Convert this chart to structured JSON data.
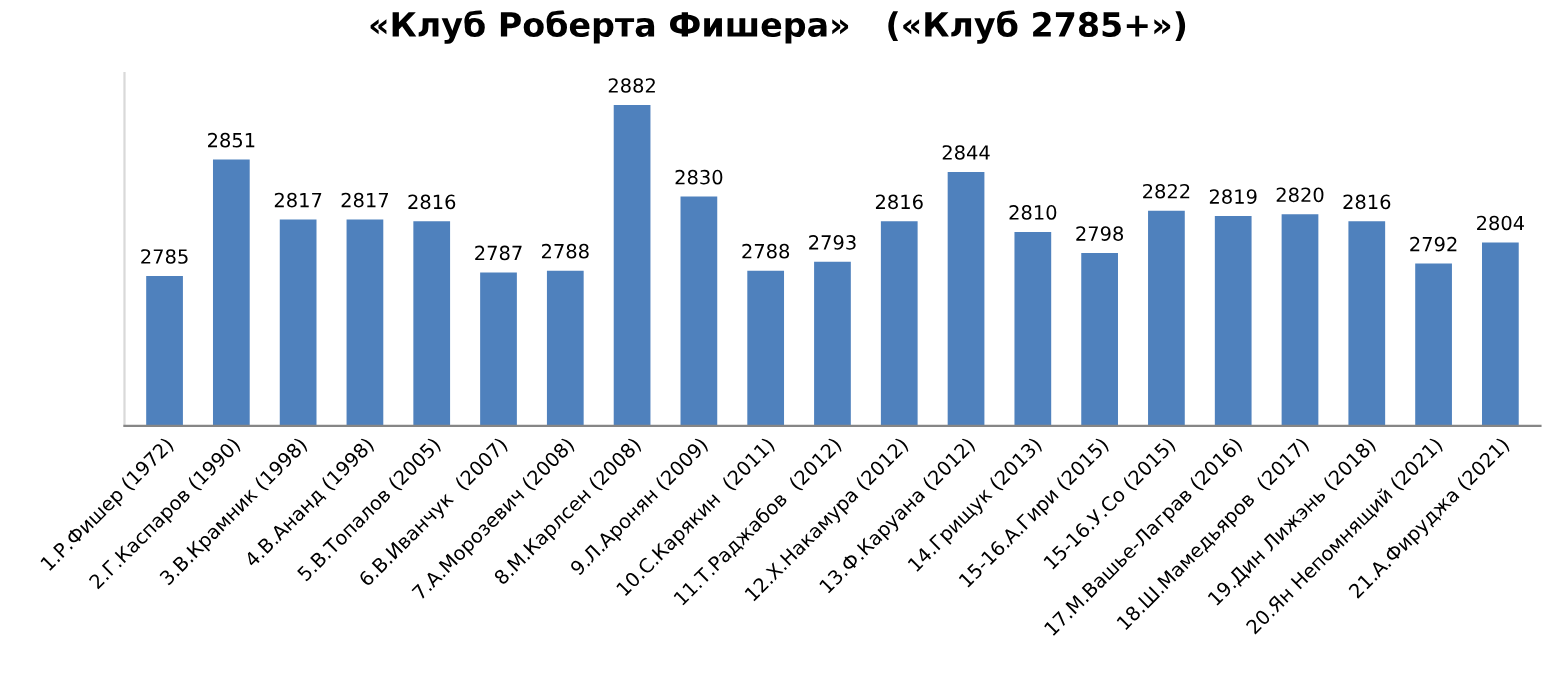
{
  "chart_data": {
    "type": "bar",
    "title": "«Клуб Роберта Фишера»   («Клуб 2785+»)",
    "categories": [
      "1.Р.Фишер (1972)",
      "2.Г.Каспаров (1990)",
      "3.В.Крамник (1998)",
      "4.В.Ананд (1998)",
      "5.В.Топалов (2005)",
      "6.В.Иванчук  (2007)",
      "7.А.Морозевич (2008)",
      "8.М.Карлсен (2008)",
      "9.Л.Аронян (2009)",
      "10.С.Карякин  (2011)",
      "11.Т.Раджабов  (2012)",
      "12.Х.Накамура (2012)",
      "13.Ф.Каруана (2012)",
      "14.Грищук (2013)",
      "15-16.А.Гири (2015)",
      "15-16.У.Со (2015)",
      "17.М.Вашье-Лаграв (2016)",
      "18.Ш.Мамедьяров  (2017)",
      "19.Дин Лижэнь (2018)",
      "20.Ян Непомнящий (2021)",
      "21.А.Фируджа (2021)"
    ],
    "values": [
      2785,
      2851,
      2817,
      2817,
      2816,
      2787,
      2788,
      2882,
      2830,
      2788,
      2793,
      2816,
      2844,
      2810,
      2798,
      2822,
      2819,
      2820,
      2816,
      2792,
      2804
    ],
    "color": "#4f81bd",
    "ylim": [
      2700,
      2900
    ],
    "data_labels": true,
    "grid": false,
    "tick_labels": "x"
  }
}
